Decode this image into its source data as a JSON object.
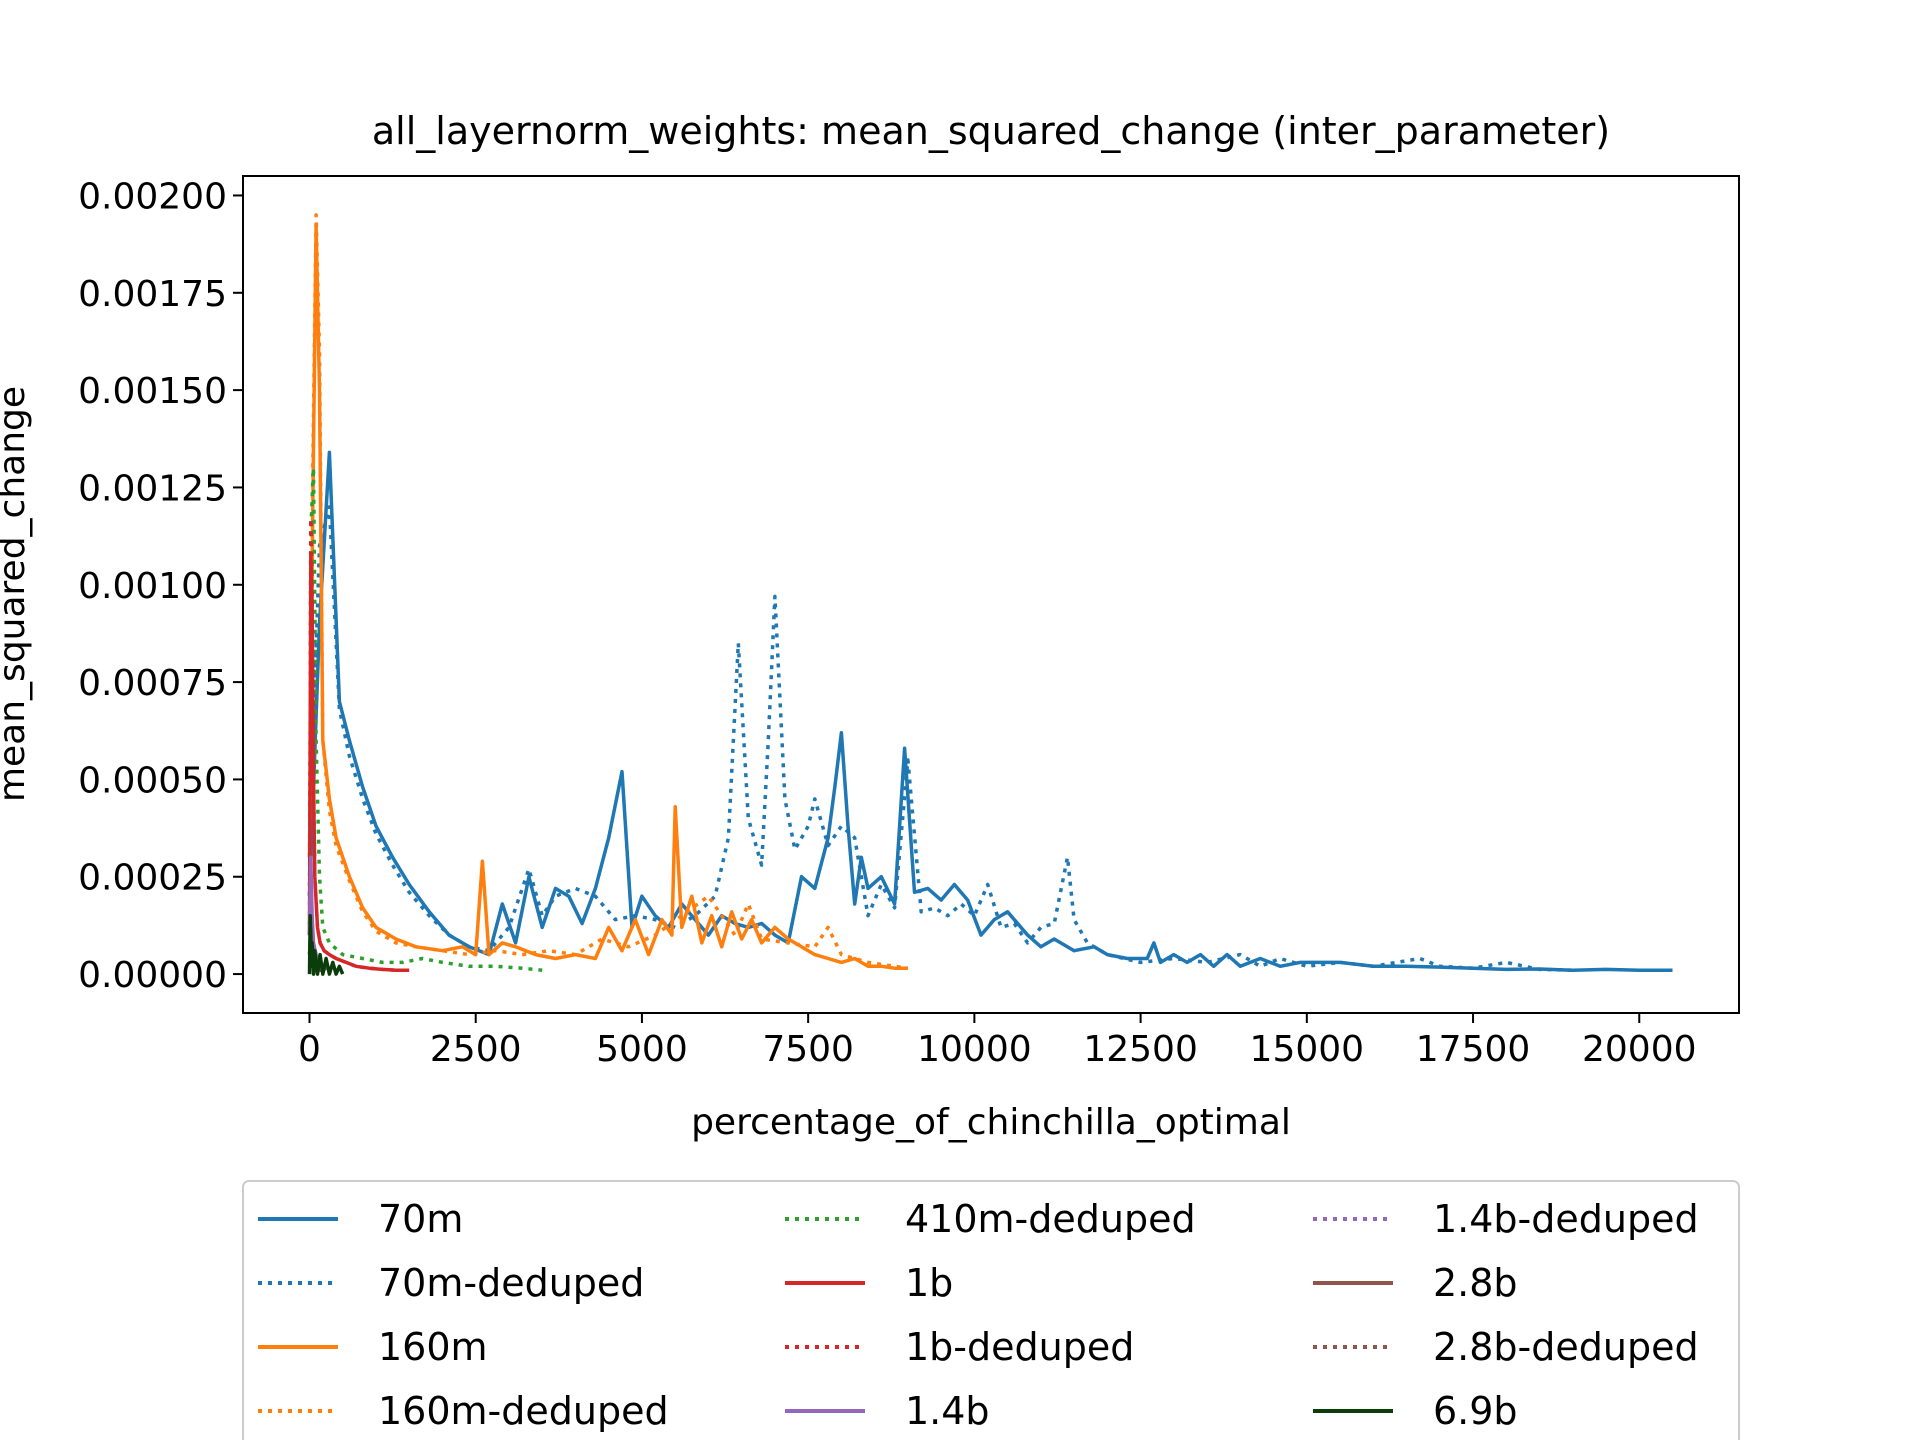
{
  "chart_data": {
    "type": "line",
    "title": "all_layernorm_weights: mean_squared_change (inter_parameter)",
    "xlabel": "percentage_of_chinchilla_optimal",
    "ylabel": "mean_squared_change",
    "xlim": [
      -1000,
      21500
    ],
    "ylim": [
      -0.0001,
      0.00205
    ],
    "x_ticks": [
      0,
      2500,
      5000,
      7500,
      10000,
      12500,
      15000,
      17500,
      20000
    ],
    "x_tick_labels": [
      "0",
      "2500",
      "5000",
      "7500",
      "10000",
      "12500",
      "15000",
      "17500",
      "20000"
    ],
    "y_ticks": [
      0,
      0.00025,
      0.0005,
      0.00075,
      0.001,
      0.00125,
      0.0015,
      0.00175,
      0.002
    ],
    "y_tick_labels": [
      "0.00000",
      "0.00025",
      "0.00050",
      "0.00075",
      "0.00100",
      "0.00125",
      "0.00150",
      "0.00175",
      "0.00200"
    ],
    "grid": false,
    "legend_placement": "below plot",
    "legend_columns": 3,
    "series": [
      {
        "name": "70m",
        "color": "#1f77b4",
        "style": "solid",
        "x": [
          0,
          150,
          300,
          450,
          600,
          800,
          1000,
          1250,
          1500,
          1800,
          2100,
          2400,
          2700,
          2900,
          3100,
          3300,
          3500,
          3700,
          3900,
          4100,
          4300,
          4500,
          4700,
          4850,
          5000,
          5200,
          5400,
          5600,
          5800,
          6000,
          6200,
          6400,
          6600,
          6800,
          7000,
          7200,
          7400,
          7600,
          7800,
          7900,
          8000,
          8100,
          8200,
          8300,
          8400,
          8600,
          8800,
          8950,
          9100,
          9300,
          9500,
          9700,
          9900,
          10100,
          10300,
          10500,
          10800,
          11000,
          11200,
          11500,
          11800,
          12000,
          12300,
          12600,
          12700,
          12800,
          13000,
          13200,
          13400,
          13600,
          13800,
          14000,
          14300,
          14600,
          14900,
          15200,
          15500,
          16000,
          16500,
          17000,
          17500,
          18000,
          18500,
          19000,
          19500,
          20000,
          20500
        ],
        "y": [
          0.0002,
          0.0009,
          0.00134,
          0.0007,
          0.0006,
          0.00048,
          0.00038,
          0.0003,
          0.00023,
          0.00016,
          0.0001,
          7e-05,
          5e-05,
          0.00018,
          8e-05,
          0.00025,
          0.00012,
          0.00022,
          0.0002,
          0.00013,
          0.00022,
          0.00035,
          0.00052,
          0.00012,
          0.0002,
          0.00015,
          0.00012,
          0.00018,
          0.00014,
          0.0001,
          0.00015,
          0.00013,
          0.00012,
          0.00013,
          0.0001,
          8e-05,
          0.00025,
          0.00022,
          0.00035,
          0.00048,
          0.00062,
          0.00038,
          0.00018,
          0.0003,
          0.00022,
          0.00025,
          0.00018,
          0.00058,
          0.00021,
          0.00022,
          0.00019,
          0.00023,
          0.00019,
          0.0001,
          0.00014,
          0.00016,
          0.0001,
          7e-05,
          9e-05,
          6e-05,
          7e-05,
          5e-05,
          4e-05,
          4e-05,
          8e-05,
          3e-05,
          5e-05,
          3e-05,
          5e-05,
          2e-05,
          5e-05,
          2e-05,
          4e-05,
          2e-05,
          3e-05,
          3e-05,
          3e-05,
          2e-05,
          2e-05,
          1.8e-05,
          1.5e-05,
          1.2e-05,
          1.3e-05,
          1e-05,
          1.2e-05,
          1e-05,
          1e-05
        ]
      },
      {
        "name": "70m-deduped",
        "color": "#1f77b4",
        "style": "dotted",
        "x": [
          0,
          150,
          300,
          450,
          600,
          800,
          1000,
          1250,
          1500,
          1800,
          2100,
          2400,
          2700,
          3000,
          3300,
          3500,
          3700,
          4000,
          4300,
          4600,
          4900,
          5200,
          5500,
          5800,
          6100,
          6300,
          6450,
          6600,
          6800,
          6900,
          7000,
          7150,
          7300,
          7500,
          7600,
          7800,
          8000,
          8200,
          8400,
          8600,
          8800,
          9000,
          9200,
          9400,
          9600,
          9800,
          10000,
          10200,
          10400,
          10600,
          10800,
          11000,
          11200,
          11400,
          11500,
          11700,
          12000,
          12500,
          13000,
          13500,
          14000,
          14300,
          14600,
          15000,
          15500,
          16000,
          16700,
          17000,
          17500,
          18000,
          18500,
          19000
        ],
        "y": [
          0.0003,
          0.0011,
          0.0012,
          0.00068,
          0.00056,
          0.00045,
          0.00036,
          0.00028,
          0.00021,
          0.00015,
          0.0001,
          7e-05,
          6e-05,
          0.00012,
          0.00027,
          0.00015,
          0.0002,
          0.00022,
          0.0002,
          0.00014,
          0.00015,
          0.00014,
          0.00012,
          0.00015,
          0.0002,
          0.00035,
          0.00085,
          0.0004,
          0.00028,
          0.0006,
          0.00097,
          0.00045,
          0.00032,
          0.00038,
          0.00045,
          0.00033,
          0.00038,
          0.00035,
          0.00015,
          0.00023,
          0.00017,
          0.00055,
          0.00016,
          0.00017,
          0.00015,
          0.00018,
          0.00015,
          0.00023,
          0.00012,
          0.00013,
          8e-05,
          0.00012,
          0.00013,
          0.0003,
          0.00014,
          8e-05,
          5e-05,
          3e-05,
          4e-05,
          3e-05,
          5e-05,
          2e-05,
          4e-05,
          2e-05,
          3e-05,
          2e-05,
          4e-05,
          2e-05,
          1.5e-05,
          3e-05,
          1.2e-05,
          1e-05
        ]
      },
      {
        "name": "160m",
        "color": "#ff7f0e",
        "style": "solid",
        "x": [
          0,
          50,
          100,
          150,
          200,
          300,
          400,
          600,
          800,
          1000,
          1300,
          1600,
          2000,
          2300,
          2500,
          2600,
          2700,
          2900,
          3100,
          3400,
          3700,
          4000,
          4300,
          4500,
          4700,
          4900,
          5100,
          5300,
          5450,
          5500,
          5600,
          5750,
          5900,
          6050,
          6200,
          6350,
          6500,
          6650,
          6800,
          7000,
          7200,
          7400,
          7600,
          7800,
          8000,
          8200,
          8400,
          8600,
          8800,
          9000
        ],
        "y": [
          0.0003,
          0.0012,
          0.00192,
          0.0015,
          0.0006,
          0.00045,
          0.00035,
          0.00025,
          0.00017,
          0.00012,
          9e-05,
          7e-05,
          6e-05,
          7e-05,
          5e-05,
          0.00029,
          5e-05,
          8e-05,
          7e-05,
          5e-05,
          4e-05,
          5e-05,
          4e-05,
          0.00012,
          6e-05,
          0.00014,
          5e-05,
          0.00014,
          0.0001,
          0.00043,
          0.00012,
          0.0002,
          8e-05,
          0.00015,
          7e-05,
          0.00016,
          9e-05,
          0.00014,
          8e-05,
          0.00012,
          9e-05,
          7e-05,
          5e-05,
          4e-05,
          3e-05,
          4e-05,
          2e-05,
          2e-05,
          1.5e-05,
          1.5e-05
        ]
      },
      {
        "name": "160m-deduped",
        "color": "#ff7f0e",
        "style": "dotted",
        "x": [
          0,
          50,
          100,
          150,
          200,
          300,
          400,
          600,
          800,
          1000,
          1300,
          1600,
          2000,
          2400,
          2800,
          3200,
          3600,
          4000,
          4400,
          4800,
          5200,
          5600,
          6000,
          6400,
          6600,
          6800,
          7200,
          7600,
          7800,
          8000,
          8400,
          8800,
          9000
        ],
        "y": [
          0.0003,
          0.0013,
          0.00195,
          0.0016,
          0.0006,
          0.00042,
          0.00033,
          0.00024,
          0.00016,
          0.00011,
          8e-05,
          7e-05,
          6e-05,
          5e-05,
          6e-05,
          5e-05,
          6e-05,
          5e-05,
          9e-05,
          7e-05,
          0.0001,
          0.00015,
          0.0002,
          0.0001,
          0.00018,
          9e-05,
          8e-05,
          7e-05,
          0.00012,
          5e-05,
          3e-05,
          2e-05,
          1.5e-05
        ]
      },
      {
        "name": "410m-deduped",
        "color": "#2ca02c",
        "style": "dotted",
        "x": [
          0,
          30,
          60,
          100,
          150,
          200,
          300,
          500,
          800,
          1100,
          1400,
          1700,
          2000,
          2400,
          2800,
          3200,
          3500
        ],
        "y": [
          0.0002,
          0.00118,
          0.0013,
          0.0006,
          0.00025,
          0.00012,
          8e-05,
          5e-05,
          4e-05,
          3e-05,
          3e-05,
          4e-05,
          3e-05,
          2e-05,
          2e-05,
          1.5e-05,
          1e-05
        ]
      },
      {
        "name": "1b",
        "color": "#d62728",
        "style": "solid",
        "x": [
          0,
          20,
          40,
          60,
          80,
          120,
          160,
          220,
          300,
          400,
          550,
          700,
          900,
          1100,
          1300,
          1500
        ],
        "y": [
          0.0001,
          0.00108,
          0.00095,
          0.0005,
          0.00025,
          0.00012,
          8e-05,
          6e-05,
          5e-05,
          4e-05,
          3e-05,
          2e-05,
          1.5e-05,
          1.2e-05,
          1e-05,
          1e-05
        ]
      },
      {
        "name": "1b-deduped",
        "color": "#d62728",
        "style": "dotted",
        "x": [
          0,
          20,
          40,
          60,
          80,
          120,
          160,
          220,
          300,
          400,
          550,
          700,
          900,
          1100,
          1300,
          1500
        ],
        "y": [
          0.0001,
          0.00117,
          0.001,
          0.0005,
          0.00025,
          0.00012,
          8e-05,
          6e-05,
          5e-05,
          4e-05,
          3e-05,
          2e-05,
          1.5e-05,
          1.2e-05,
          1e-05,
          1e-05
        ]
      },
      {
        "name": "1.4b",
        "color": "#9467bd",
        "style": "solid",
        "x": [
          0,
          20,
          40,
          60,
          100,
          150,
          200,
          250
        ],
        "y": [
          0.0001,
          0.0003,
          0.00015,
          8e-05,
          5e-05,
          3e-05,
          2e-05,
          1e-05
        ]
      },
      {
        "name": "1.4b-deduped",
        "color": "#9467bd",
        "style": "dotted",
        "x": [
          0,
          20,
          40,
          60,
          100,
          150,
          200,
          250
        ],
        "y": [
          0.0001,
          0.00028,
          0.00014,
          7e-05,
          4e-05,
          3e-05,
          2e-05,
          1e-05
        ]
      },
      {
        "name": "2.8b",
        "color": "#8c564b",
        "style": "solid",
        "x": [
          0,
          20,
          40,
          60,
          100,
          150,
          200
        ],
        "y": [
          5e-05,
          0.00012,
          6e-05,
          4e-05,
          2e-05,
          1e-05,
          1e-05
        ]
      },
      {
        "name": "2.8b-deduped",
        "color": "#8c564b",
        "style": "dotted",
        "x": [
          0,
          20,
          40,
          60,
          100,
          150,
          200
        ],
        "y": [
          5e-05,
          0.0001,
          5e-05,
          3e-05,
          2e-05,
          1e-05,
          1e-05
        ]
      },
      {
        "name": "6.9b",
        "color": "#0b3d0b",
        "style": "solid",
        "x": [
          0,
          10,
          20,
          30,
          40,
          60,
          80,
          120,
          160,
          200,
          250,
          300,
          350,
          400,
          450,
          500
        ],
        "y": [
          0.0,
          0.00015,
          8e-05,
          2e-05,
          8e-05,
          0.0,
          6e-05,
          0.0,
          5e-05,
          0.0,
          4e-05,
          0.0,
          3e-05,
          0.0,
          2e-05,
          0.0
        ]
      }
    ]
  }
}
